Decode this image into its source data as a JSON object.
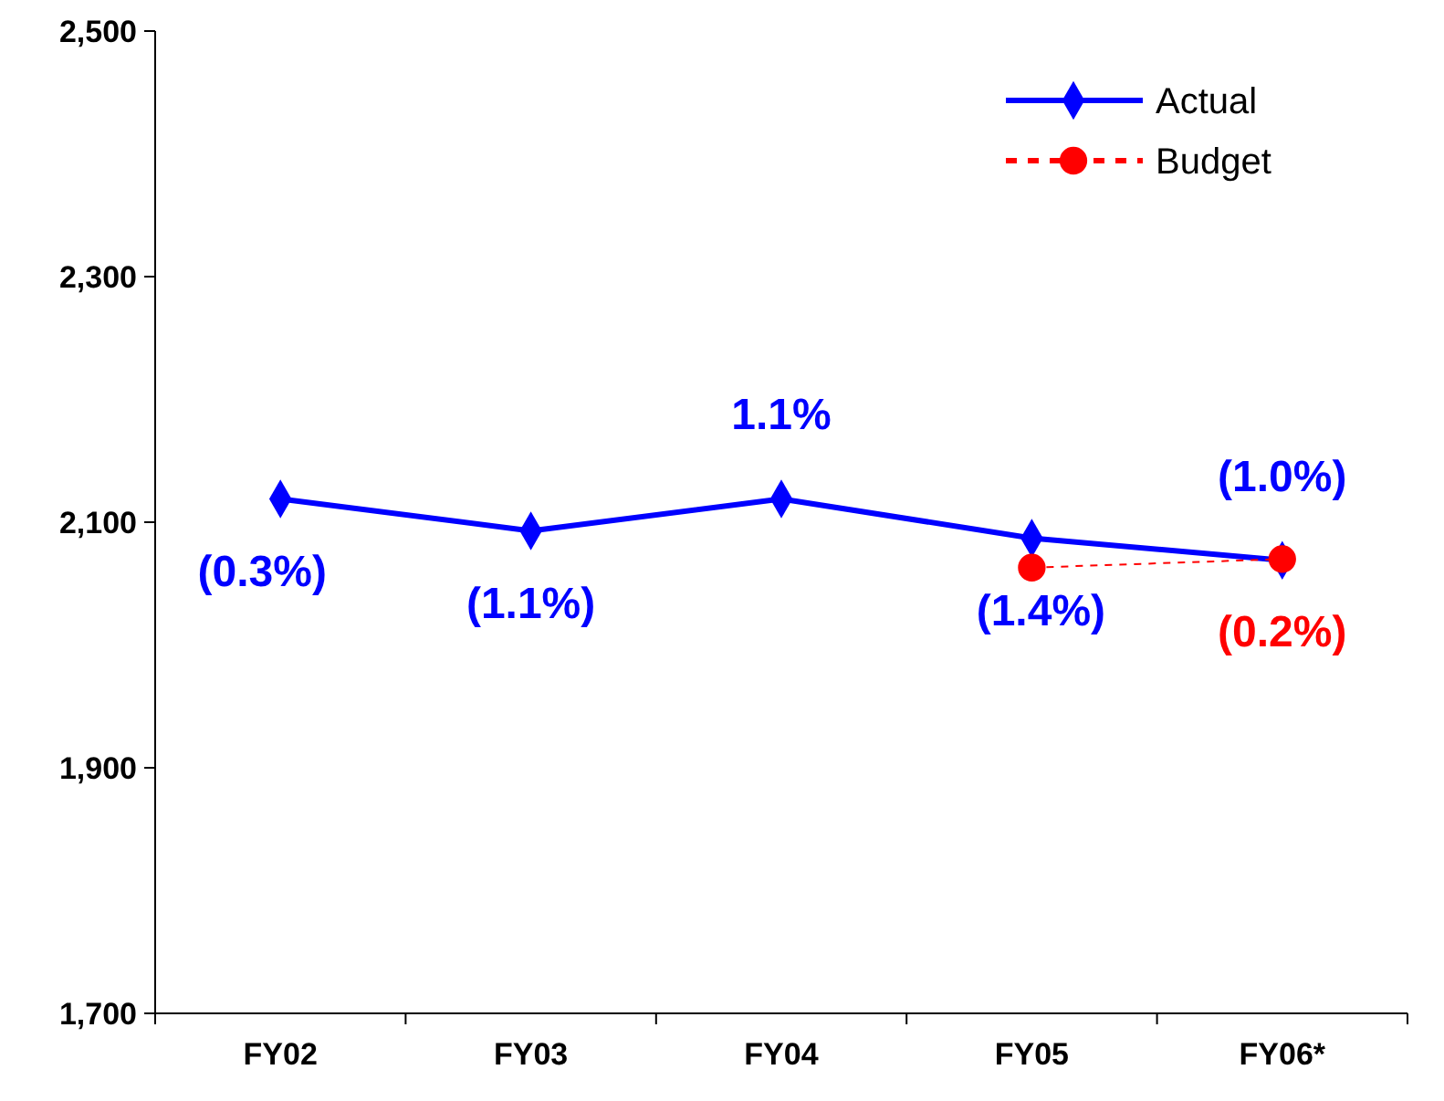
{
  "chart_data": {
    "type": "line",
    "categories": [
      "FY02",
      "FY03",
      "FY04",
      "FY05",
      "FY06*"
    ],
    "series": [
      {
        "name": "Actual",
        "color": "#0000ff",
        "marker": "diamond",
        "line_style": "solid",
        "values": [
          2119,
          2093,
          2119,
          2087,
          2069
        ]
      },
      {
        "name": "Budget",
        "color": "#ff0000",
        "marker": "circle",
        "line_style": "dashed",
        "values": [
          null,
          null,
          null,
          2063,
          2070
        ]
      }
    ],
    "annotations": [
      {
        "text": "(0.3%)",
        "x": "FY02",
        "y": 2119
      },
      {
        "text": "(1.1%)",
        "x": "FY03",
        "y": 2093
      },
      {
        "text": "1.1%",
        "x": "FY04",
        "y": 2119
      },
      {
        "text": "(1.4%)",
        "x": "FY05",
        "y": 2087
      },
      {
        "text": "(1.0%)",
        "x": "FY06*",
        "y": 2069
      },
      {
        "text": "(0.2%)",
        "x": "FY06*",
        "y": 2070
      }
    ],
    "ylim": [
      1700,
      2500
    ],
    "yticks": [
      {
        "value": 1700,
        "label": "1,700"
      },
      {
        "value": 1900,
        "label": "1,900"
      },
      {
        "value": 2100,
        "label": "2,100"
      },
      {
        "value": 2300,
        "label": "2,300"
      },
      {
        "value": 2500,
        "label": "2,500"
      }
    ],
    "grid": false,
    "legend": "top right"
  }
}
